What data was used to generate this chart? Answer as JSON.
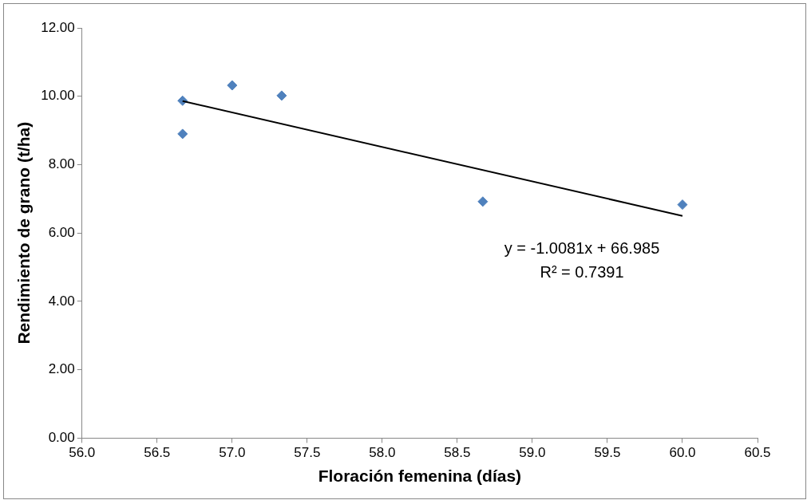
{
  "chart_data": {
    "type": "scatter",
    "xlabel": "Floración femenina (días)",
    "ylabel": "Rendimiento de grano (t/ha)",
    "x": [
      56.67,
      56.67,
      57.0,
      57.33,
      58.67,
      60.0
    ],
    "series": [
      {
        "color": "#4f81bd",
        "values": [
          9.87,
          8.9,
          10.32,
          10.02,
          6.92,
          6.83
        ],
        "marker": "diamond"
      },
      {
        "type": "line",
        "color": "#000000",
        "x": [
          56.67,
          60.0
        ],
        "values": [
          9.86,
          6.5
        ],
        "marker": "none"
      }
    ],
    "annotations": [
      "y = -1.0081x + 66.985",
      "R² = 0.7391"
    ],
    "xlim": [
      56.0,
      60.5
    ],
    "xticks": [
      {
        "value": 56,
        "label": "56.0"
      },
      {
        "value": 56.5,
        "label": "56.5"
      },
      {
        "value": 57,
        "label": "57.0"
      },
      {
        "value": 57.5,
        "label": "57.5"
      },
      {
        "value": 58,
        "label": "58.0"
      },
      {
        "value": 58.5,
        "label": "58.5"
      },
      {
        "value": 59,
        "label": "59.0"
      },
      {
        "value": 59.5,
        "label": "59.5"
      },
      {
        "value": 60,
        "label": "60.0"
      },
      {
        "value": 60.5,
        "label": "60.5"
      }
    ],
    "ylim": [
      0,
      12
    ],
    "yticks": [
      {
        "value": 0,
        "label": "0.00"
      },
      {
        "value": 2,
        "label": "2.00"
      },
      {
        "value": 4,
        "label": "4.00"
      },
      {
        "value": 6,
        "label": "6.00"
      },
      {
        "value": 8,
        "label": "8.00"
      },
      {
        "value": 10,
        "label": "10.00"
      },
      {
        "value": 12,
        "label": "12.00"
      }
    ],
    "grid": false,
    "legend": false
  }
}
